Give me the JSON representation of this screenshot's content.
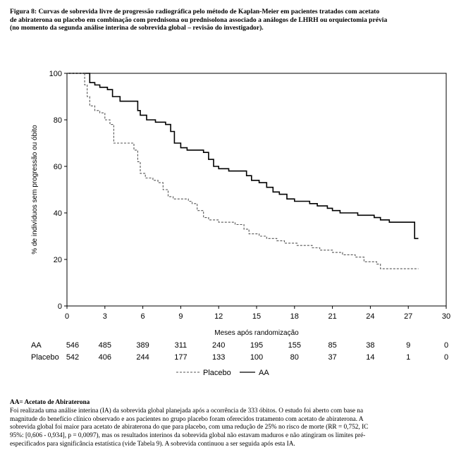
{
  "caption": {
    "lines": [
      "Figura 8:  Curvas de sobrevida livre de progressão radiográfica pelo método de Kaplan-Meier em pacientes tratados com acetato",
      "de abiraterona ou placebo em combinação com prednisona ou prednisolona associado a análogos de LHRH ou orquiectomia prévia",
      "(no momento da segunda análise interina de sobrevida global – revisão do investigador)."
    ]
  },
  "chart_data": {
    "type": "line",
    "title": "",
    "xlabel": "Meses após randomização",
    "ylabel": "% de indivíduos sem progressão ou óbito",
    "xlim": [
      0,
      30
    ],
    "ylim": [
      0,
      100
    ],
    "xticks": [
      0,
      3,
      6,
      9,
      12,
      15,
      18,
      21,
      24,
      27,
      30
    ],
    "yticks": [
      0,
      20,
      40,
      60,
      80,
      100
    ],
    "legend_position": "bottom",
    "series": [
      {
        "name": "AA",
        "style": "solid",
        "color": "#000000",
        "x": [
          0,
          1.5,
          1.8,
          2.2,
          2.6,
          3.2,
          3.6,
          4.2,
          5.2,
          5.6,
          5.8,
          6.3,
          7.0,
          7.8,
          8.2,
          8.5,
          9.0,
          9.5,
          10.8,
          11.2,
          11.6,
          12.0,
          12.8,
          13.8,
          14.2,
          14.6,
          15.2,
          15.8,
          16.3,
          16.8,
          17.4,
          18.0,
          19.2,
          19.8,
          20.6,
          21.0,
          21.6,
          22.6,
          23.0,
          24.3,
          24.8,
          25.5,
          27.2,
          27.5,
          27.8
        ],
        "y": [
          100,
          100,
          96,
          95,
          94,
          93,
          90,
          88,
          88,
          84,
          82,
          80,
          79,
          78,
          75,
          70,
          68,
          67,
          66,
          63,
          60,
          59,
          58,
          58,
          56,
          54,
          53,
          51,
          49,
          48,
          46,
          45,
          44,
          43,
          42,
          41,
          40,
          40,
          39,
          38,
          37,
          36,
          36,
          29,
          29
        ]
      },
      {
        "name": "Placebo",
        "style": "dashed",
        "color": "#555555",
        "x": [
          0,
          1.2,
          1.4,
          1.6,
          1.8,
          2.2,
          2.6,
          3.0,
          3.4,
          3.7,
          5.3,
          5.6,
          5.8,
          6.2,
          6.8,
          7.2,
          7.6,
          8.0,
          8.4,
          9.6,
          9.9,
          10.3,
          10.8,
          11.2,
          12.0,
          12.7,
          13.3,
          14.0,
          14.4,
          15.2,
          15.8,
          16.6,
          17.2,
          18.2,
          19.4,
          20.0,
          21.0,
          21.8,
          22.8,
          23.5,
          24.5,
          24.8,
          27.8
        ],
        "y": [
          100,
          100,
          95,
          90,
          86,
          84,
          83,
          80,
          78,
          70,
          67,
          62,
          57,
          55,
          54,
          53,
          50,
          47,
          46,
          45,
          44,
          41,
          38,
          37,
          36,
          36,
          35,
          33,
          31,
          30,
          29,
          28,
          27,
          26,
          25,
          24,
          23,
          22,
          21,
          19,
          18,
          16,
          16
        ]
      }
    ],
    "risk_table": {
      "times": [
        0,
        3,
        6,
        9,
        12,
        15,
        18,
        21,
        24,
        27,
        30
      ],
      "rows": [
        {
          "label": "AA",
          "values": [
            "546",
            "485",
            "389",
            "311",
            "240",
            "195",
            "155",
            "85",
            "38",
            "9",
            "0"
          ]
        },
        {
          "label": "Placebo",
          "values": [
            "542",
            "406",
            "244",
            "177",
            "133",
            "100",
            "80",
            "37",
            "14",
            "1",
            "0"
          ]
        }
      ]
    },
    "legend": [
      {
        "label": "Placebo",
        "style": "dashed"
      },
      {
        "label": "AA",
        "style": "solid"
      }
    ]
  },
  "footer": {
    "abbreviation": "AA= Acetato de Abiraterona",
    "lines": [
      "Foi realizada uma análise interina (IA) da sobrevida global planejada após a ocorrência de 333 óbitos. O estudo foi aberto com base na",
      "magnitude do benefício clínico observado e aos pacientes no grupo placebo foram oferecidos tratamento com acetato de abiraterona. A",
      "sobrevida global foi maior para acetato de abiraterona do que para placebo, com uma redução de 25% no risco de morte (RR = 0,752, IC",
      "95%: [0,606 - 0,934], p = 0,0097), mas os resultados interinos da sobrevida global não estavam maduros e não atingiram os limites pré-",
      "especificados para significância estatística (vide Tabela 9). A sobrevida continuou a ser seguida após esta IA."
    ]
  }
}
